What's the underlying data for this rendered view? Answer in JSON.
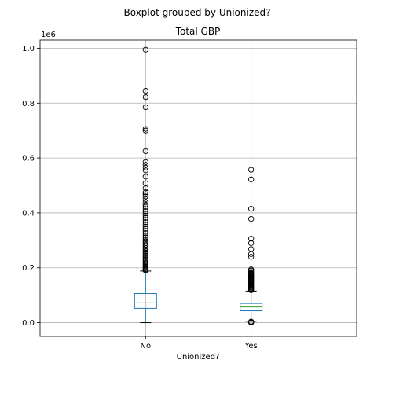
{
  "suptitle": "Boxplot grouped by Unionized?",
  "chart_data": {
    "type": "boxplot",
    "title": "Total GBP",
    "xlabel": "Unionized?",
    "ylabel": "",
    "y_offset_label": "1e6",
    "ylim": [
      -0.05,
      1.03
    ],
    "y_ticks": [
      0.0,
      0.2,
      0.4,
      0.6,
      0.8,
      1.0
    ],
    "y_tick_labels": [
      "0.0",
      "0.2",
      "0.4",
      "0.6",
      "0.8",
      "1.0"
    ],
    "grid": true,
    "categories": [
      "No",
      "Yes"
    ],
    "boxes": [
      {
        "category": "No",
        "whisker_low": 0.0,
        "q1": 0.052,
        "median": 0.072,
        "q3": 0.106,
        "whisker_high": 0.188,
        "outliers": [
          0.19,
          0.193,
          0.196,
          0.2,
          0.204,
          0.208,
          0.212,
          0.216,
          0.22,
          0.225,
          0.23,
          0.235,
          0.24,
          0.245,
          0.25,
          0.255,
          0.26,
          0.266,
          0.272,
          0.278,
          0.284,
          0.29,
          0.297,
          0.304,
          0.311,
          0.318,
          0.326,
          0.334,
          0.342,
          0.35,
          0.358,
          0.366,
          0.374,
          0.382,
          0.39,
          0.398,
          0.406,
          0.414,
          0.422,
          0.43,
          0.44,
          0.45,
          0.46,
          0.468,
          0.475,
          0.49,
          0.508,
          0.532,
          0.555,
          0.565,
          0.575,
          0.585,
          0.625,
          0.7,
          0.706,
          0.785,
          0.822,
          0.845,
          0.995
        ]
      },
      {
        "category": "Yes",
        "whisker_low": 0.005,
        "q1": 0.043,
        "median": 0.057,
        "q3": 0.07,
        "whisker_high": 0.115,
        "outliers": [
          0.0,
          0.002,
          0.004,
          0.118,
          0.121,
          0.124,
          0.127,
          0.13,
          0.133,
          0.136,
          0.139,
          0.142,
          0.145,
          0.148,
          0.151,
          0.154,
          0.157,
          0.16,
          0.163,
          0.166,
          0.169,
          0.172,
          0.175,
          0.178,
          0.181,
          0.185,
          0.19,
          0.194,
          0.24,
          0.25,
          0.268,
          0.29,
          0.306,
          0.378,
          0.415,
          0.522,
          0.557
        ]
      }
    ],
    "colors": {
      "box": "#1f77b4",
      "median": "#2ca02c",
      "whisker": "#1f77b4",
      "cap": "#000000",
      "outlier_edge": "#000000",
      "grid": "#b0b0b0",
      "axes": "#000000"
    }
  }
}
